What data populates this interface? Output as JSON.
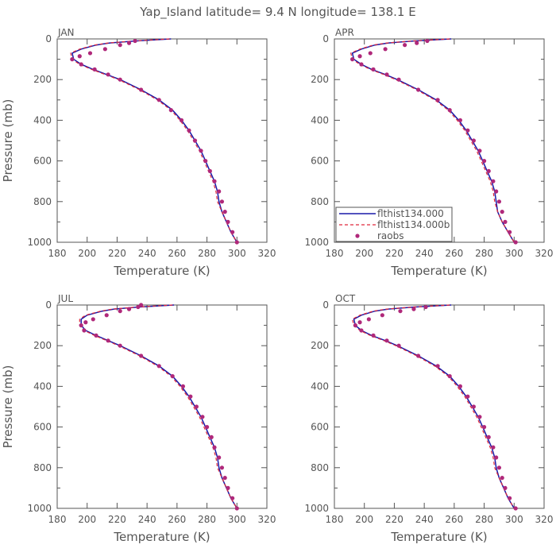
{
  "title": "Yap_Island   latitude=  9.4 N longitude=  138.1 E",
  "colors": {
    "model_a": "#1a1aa8",
    "model_b": "#e0283a",
    "obs": "#b0287a",
    "axis": "#555555"
  },
  "chart_data": [
    {
      "type": "line",
      "panel": "JAN",
      "xlabel": "Temperature (K)",
      "ylabel": "Pressure (mb)",
      "xlim": [
        180,
        320
      ],
      "ylim": [
        1000,
        0
      ],
      "xticks": [
        180,
        200,
        220,
        240,
        260,
        280,
        300,
        320
      ],
      "yticks": [
        0,
        200,
        400,
        600,
        800,
        1000
      ],
      "pressure": [
        0,
        10,
        20,
        30,
        50,
        70,
        100,
        125,
        150,
        175,
        200,
        250,
        300,
        350,
        400,
        450,
        500,
        550,
        600,
        650,
        700,
        750,
        800,
        850,
        900,
        950,
        1000
      ],
      "series": [
        {
          "name": "flthist134.000",
          "values": [
            256,
            232,
            215,
            206,
            196,
            190,
            191,
            196,
            204,
            213,
            222,
            236,
            248,
            257,
            263,
            268,
            272,
            276,
            279,
            282,
            285,
            287,
            288,
            290,
            293,
            296,
            300
          ]
        },
        {
          "name": "flthist134.000b",
          "values": [
            255,
            231,
            214,
            205,
            195,
            189,
            190,
            195,
            203,
            212,
            221,
            235,
            247,
            256,
            262,
            267,
            271,
            275,
            278,
            281,
            284,
            286,
            287,
            290,
            293,
            296,
            300
          ]
        },
        {
          "name": "raobs",
          "pressure": [
            10,
            20,
            30,
            50,
            70,
            85,
            100,
            125,
            150,
            175,
            200,
            250,
            300,
            350,
            400,
            450,
            500,
            550,
            600,
            650,
            700,
            750,
            800,
            850,
            900,
            950,
            1000
          ],
          "values": [
            232,
            228,
            222,
            212,
            202,
            195,
            190,
            196,
            205,
            214,
            222,
            236,
            248,
            256,
            263,
            268,
            272,
            276,
            279,
            282,
            285,
            288,
            290,
            292,
            294,
            297,
            300
          ]
        }
      ]
    },
    {
      "type": "line",
      "panel": "APR",
      "xlabel": "Temperature (K)",
      "ylabel": "",
      "xlim": [
        180,
        320
      ],
      "ylim": [
        1000,
        0
      ],
      "xticks": [
        180,
        200,
        220,
        240,
        260,
        280,
        300,
        320
      ],
      "yticks": [
        0,
        200,
        400,
        600,
        800,
        1000
      ],
      "legend": "bottom-left",
      "pressure": [
        0,
        10,
        20,
        30,
        50,
        70,
        100,
        125,
        150,
        175,
        200,
        250,
        300,
        350,
        400,
        450,
        500,
        550,
        600,
        650,
        700,
        750,
        800,
        850,
        900,
        950,
        1000
      ],
      "series": [
        {
          "name": "flthist134.000",
          "values": [
            258,
            233,
            216,
            207,
            198,
            192,
            193,
            198,
            205,
            214,
            222,
            236,
            248,
            257,
            263,
            268,
            272,
            276,
            279,
            282,
            285,
            287,
            288,
            289,
            292,
            296,
            300
          ]
        },
        {
          "name": "flthist134.000b",
          "values": [
            257,
            232,
            215,
            206,
            197,
            191,
            192,
            197,
            204,
            213,
            221,
            235,
            247,
            256,
            262,
            267,
            271,
            275,
            278,
            281,
            284,
            286,
            287,
            289,
            292,
            296,
            300
          ]
        },
        {
          "name": "raobs",
          "pressure": [
            10,
            20,
            30,
            50,
            70,
            85,
            100,
            125,
            150,
            175,
            200,
            250,
            300,
            350,
            400,
            450,
            500,
            550,
            600,
            650,
            700,
            750,
            800,
            850,
            900,
            950,
            1000
          ],
          "values": [
            242,
            235,
            227,
            214,
            204,
            197,
            192,
            198,
            206,
            215,
            223,
            236,
            249,
            257,
            264,
            269,
            273,
            277,
            280,
            283,
            286,
            288,
            290,
            292,
            294,
            297,
            301
          ]
        }
      ]
    },
    {
      "type": "line",
      "panel": "JUL",
      "xlabel": "Temperature (K)",
      "ylabel": "Pressure (mb)",
      "xlim": [
        180,
        320
      ],
      "ylim": [
        1000,
        0
      ],
      "xticks": [
        180,
        200,
        220,
        240,
        260,
        280,
        300,
        320
      ],
      "yticks": [
        0,
        200,
        400,
        600,
        800,
        1000
      ],
      "pressure": [
        0,
        10,
        20,
        30,
        50,
        70,
        100,
        125,
        150,
        175,
        200,
        250,
        300,
        350,
        400,
        450,
        500,
        550,
        600,
        650,
        700,
        750,
        800,
        850,
        900,
        950,
        1000
      ],
      "series": [
        {
          "name": "flthist134.000",
          "values": [
            258,
            234,
            218,
            210,
            200,
            196,
            196,
            199,
            206,
            214,
            222,
            236,
            248,
            257,
            263,
            268,
            272,
            276,
            279,
            282,
            285,
            287,
            288,
            290,
            293,
            296,
            300
          ]
        },
        {
          "name": "flthist134.000b",
          "values": [
            257,
            233,
            217,
            209,
            199,
            195,
            195,
            198,
            205,
            213,
            221,
            235,
            247,
            256,
            262,
            267,
            271,
            275,
            278,
            281,
            284,
            286,
            287,
            290,
            293,
            296,
            300
          ]
        },
        {
          "name": "raobs",
          "pressure": [
            0,
            10,
            20,
            30,
            50,
            70,
            85,
            100,
            125,
            150,
            175,
            200,
            250,
            300,
            350,
            400,
            450,
            500,
            550,
            600,
            650,
            700,
            750,
            800,
            850,
            900,
            950,
            1000
          ],
          "values": [
            236,
            234,
            228,
            222,
            213,
            204,
            199,
            196,
            198,
            206,
            214,
            222,
            236,
            248,
            257,
            264,
            269,
            273,
            277,
            280,
            283,
            285,
            288,
            290,
            292,
            294,
            297,
            300
          ]
        }
      ]
    },
    {
      "type": "line",
      "panel": "OCT",
      "xlabel": "Temperature (K)",
      "ylabel": "",
      "xlim": [
        180,
        320
      ],
      "ylim": [
        1000,
        0
      ],
      "xticks": [
        180,
        200,
        220,
        240,
        260,
        280,
        300,
        320
      ],
      "yticks": [
        0,
        200,
        400,
        600,
        800,
        1000
      ],
      "pressure": [
        0,
        10,
        20,
        30,
        50,
        70,
        100,
        125,
        150,
        175,
        200,
        250,
        300,
        350,
        400,
        450,
        500,
        550,
        600,
        650,
        700,
        750,
        800,
        850,
        900,
        950,
        1000
      ],
      "series": [
        {
          "name": "flthist134.000",
          "values": [
            258,
            233,
            216,
            207,
            198,
            193,
            194,
            198,
            205,
            214,
            222,
            236,
            248,
            257,
            263,
            268,
            272,
            276,
            279,
            282,
            285,
            287,
            288,
            290,
            293,
            296,
            300
          ]
        },
        {
          "name": "flthist134.000b",
          "values": [
            257,
            232,
            215,
            206,
            197,
            192,
            193,
            197,
            204,
            213,
            221,
            235,
            247,
            256,
            262,
            267,
            271,
            275,
            278,
            281,
            284,
            286,
            287,
            290,
            293,
            296,
            300
          ]
        },
        {
          "name": "raobs",
          "pressure": [
            10,
            20,
            30,
            50,
            70,
            85,
            100,
            125,
            150,
            175,
            200,
            250,
            300,
            350,
            400,
            450,
            500,
            550,
            600,
            650,
            700,
            750,
            800,
            850,
            900,
            950,
            1000
          ],
          "values": [
            241,
            233,
            224,
            212,
            203,
            197,
            194,
            198,
            206,
            215,
            223,
            236,
            249,
            257,
            264,
            269,
            273,
            277,
            280,
            283,
            286,
            288,
            290,
            292,
            294,
            297,
            301
          ]
        }
      ]
    }
  ]
}
